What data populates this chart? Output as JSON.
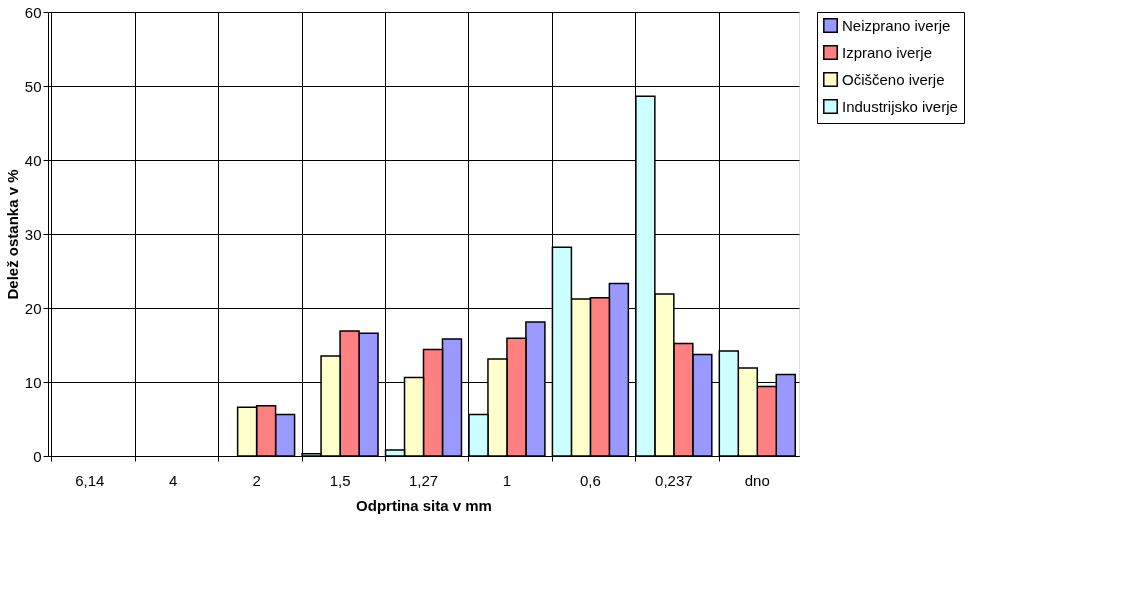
{
  "chart_data": {
    "type": "bar",
    "xlabel": "Odprtina sita v mm",
    "ylabel": "Delež ostanka v %",
    "categories": [
      "6,14",
      "4",
      "2",
      "1,5",
      "1,27",
      "1",
      "0,6",
      "0,237",
      "dno"
    ],
    "series": [
      {
        "name": "Neizprano iverje",
        "color": "#9999ff",
        "values": [
          null,
          null,
          5.6,
          16.6,
          15.8,
          18.1,
          23.3,
          13.7,
          11.0
        ]
      },
      {
        "name": "Izprano iverje",
        "color": "#ff8080",
        "values": [
          null,
          null,
          6.8,
          16.9,
          14.4,
          15.9,
          21.4,
          15.2,
          9.4
        ]
      },
      {
        "name": "Očiščeno iverje",
        "color": "#ffffcc",
        "values": [
          null,
          null,
          6.6,
          13.5,
          10.6,
          13.1,
          21.2,
          21.9,
          11.9
        ]
      },
      {
        "name": "Industrijsko iverje",
        "color": "#ccffff",
        "values": [
          null,
          null,
          null,
          0.3,
          0.8,
          5.6,
          28.2,
          48.6,
          14.2
        ]
      }
    ],
    "ylim": [
      0,
      60
    ],
    "yticks": [
      0,
      10,
      20,
      30,
      40,
      50,
      60
    ],
    "grid": true,
    "legend": "right"
  }
}
